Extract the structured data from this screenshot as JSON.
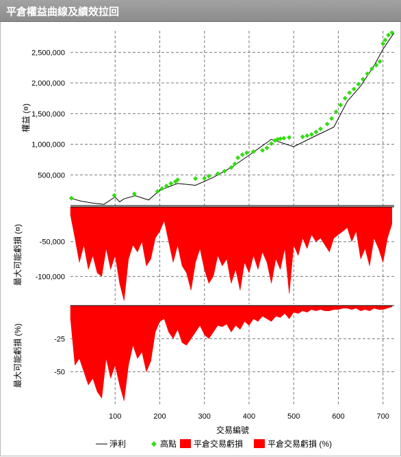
{
  "window": {
    "title": "平倉權益曲線及績效拉回"
  },
  "colors": {
    "equity": "#000000",
    "high": "#33dd11",
    "drawdown": "#ff0000",
    "grid": "#777777"
  },
  "chart_data": [
    {
      "type": "line",
      "ylabel": "權益 (¤)",
      "xlim": [
        0,
        725
      ],
      "ylim": [
        0,
        2850000
      ],
      "yticks": [
        500000,
        1000000,
        1500000,
        2000000,
        2500000
      ],
      "ytick_labels": [
        "500,000",
        "1,000,000",
        "1,500,000",
        "2,000,000",
        "2,500,000"
      ],
      "series": [
        {
          "name": "淨利",
          "x": [
            0,
            25,
            50,
            75,
            100,
            110,
            120,
            145,
            175,
            200,
            240,
            280,
            320,
            360,
            400,
            450,
            500,
            550,
            590,
            620,
            650,
            680,
            700,
            725
          ],
          "y": [
            120000,
            70000,
            40000,
            20000,
            140000,
            60000,
            110000,
            160000,
            90000,
            250000,
            360000,
            330000,
            460000,
            620000,
            820000,
            1080000,
            960000,
            1140000,
            1280000,
            1700000,
            1950000,
            2280000,
            2550000,
            2820000
          ]
        },
        {
          "name": "高點",
          "x": [
            2,
            98,
            143,
            195,
            205,
            215,
            225,
            235,
            240,
            280,
            300,
            310,
            330,
            345,
            360,
            368,
            375,
            385,
            395,
            410,
            430,
            440,
            450,
            458,
            464,
            470,
            478,
            490,
            520,
            530,
            540,
            550,
            560,
            575,
            585,
            595,
            605,
            615,
            625,
            635,
            645,
            655,
            665,
            675,
            685,
            693,
            700,
            705,
            712,
            720
          ],
          "y": [
            120000,
            165000,
            190000,
            230000,
            275000,
            320000,
            360000,
            390000,
            420000,
            440000,
            445000,
            480000,
            520000,
            560000,
            620000,
            680000,
            780000,
            830000,
            860000,
            880000,
            900000,
            940000,
            1010000,
            1060000,
            1080000,
            1090000,
            1100000,
            1110000,
            1120000,
            1140000,
            1160000,
            1200000,
            1250000,
            1330000,
            1420000,
            1530000,
            1640000,
            1750000,
            1840000,
            1900000,
            1980000,
            2060000,
            2150000,
            2230000,
            2290000,
            2350000,
            2640000,
            2700000,
            2780000,
            2820000
          ]
        }
      ]
    },
    {
      "type": "area",
      "ylabel": "最大可能虧損 (¤)",
      "xlim": [
        0,
        725
      ],
      "ylim": [
        -140000,
        0
      ],
      "yticks": [
        -50000,
        -100000
      ],
      "ytick_labels": [
        "-50,000",
        "-100,000"
      ],
      "series": [
        {
          "name": "平倉交易虧損",
          "x": [
            0,
            10,
            20,
            30,
            40,
            50,
            60,
            70,
            80,
            90,
            100,
            110,
            120,
            130,
            140,
            150,
            160,
            170,
            180,
            190,
            200,
            210,
            220,
            230,
            240,
            250,
            260,
            270,
            280,
            290,
            300,
            310,
            320,
            330,
            340,
            350,
            360,
            370,
            380,
            390,
            400,
            410,
            420,
            430,
            440,
            450,
            460,
            470,
            480,
            490,
            500,
            510,
            520,
            530,
            540,
            550,
            560,
            570,
            580,
            590,
            600,
            610,
            620,
            630,
            640,
            650,
            660,
            670,
            680,
            690,
            700,
            710,
            720
          ],
          "y": [
            -12000,
            -45000,
            -80000,
            -55000,
            -90000,
            -70000,
            -95000,
            -100000,
            -60000,
            -90000,
            -70000,
            -110000,
            -135000,
            -75000,
            -55000,
            -65000,
            -50000,
            -85000,
            -75000,
            -45000,
            -35000,
            -20000,
            -50000,
            -80000,
            -55000,
            -85000,
            -95000,
            -120000,
            -80000,
            -60000,
            -90000,
            -110000,
            -100000,
            -70000,
            -85000,
            -75000,
            -110000,
            -90000,
            -120000,
            -80000,
            -95000,
            -70000,
            -90000,
            -65000,
            -80000,
            -110000,
            -75000,
            -90000,
            -60000,
            -125000,
            -55000,
            -70000,
            -45000,
            -60000,
            -40000,
            -50000,
            -45000,
            -55000,
            -65000,
            -45000,
            -40000,
            -35000,
            -30000,
            -50000,
            -35000,
            -75000,
            -60000,
            -85000,
            -45000,
            -60000,
            -80000,
            -45000,
            -25000
          ]
        }
      ]
    },
    {
      "type": "area",
      "xlabel": "交易編號",
      "ylabel": "最大可能虧損 (%)",
      "xlim": [
        0,
        725
      ],
      "ylim": [
        -75,
        0
      ],
      "yticks": [
        -25,
        -50
      ],
      "ytick_labels": [
        "-25",
        "-50"
      ],
      "xticks": [
        100,
        200,
        300,
        400,
        500,
        600,
        700
      ],
      "xtick_labels": [
        "100",
        "200",
        "300",
        "400",
        "500",
        "600",
        "700"
      ],
      "series": [
        {
          "name": "平倉交易虧損 (%)",
          "x": [
            0,
            10,
            20,
            30,
            40,
            50,
            60,
            70,
            80,
            90,
            100,
            110,
            120,
            130,
            140,
            150,
            160,
            170,
            180,
            190,
            200,
            210,
            220,
            230,
            240,
            250,
            260,
            270,
            280,
            290,
            300,
            310,
            320,
            330,
            340,
            350,
            360,
            370,
            380,
            390,
            400,
            410,
            420,
            430,
            440,
            450,
            460,
            470,
            480,
            490,
            500,
            510,
            520,
            530,
            540,
            550,
            560,
            570,
            580,
            590,
            600,
            610,
            620,
            630,
            640,
            650,
            660,
            670,
            680,
            690,
            700,
            710,
            720
          ],
          "y": [
            -10,
            -45,
            -40,
            -50,
            -60,
            -55,
            -65,
            -70,
            -40,
            -55,
            -45,
            -60,
            -72,
            -45,
            -30,
            -40,
            -35,
            -50,
            -42,
            -20,
            -12,
            -10,
            -20,
            -25,
            -18,
            -28,
            -30,
            -25,
            -20,
            -15,
            -22,
            -25,
            -20,
            -15,
            -16,
            -14,
            -20,
            -15,
            -18,
            -12,
            -15,
            -10,
            -12,
            -8,
            -10,
            -12,
            -8,
            -9,
            -6,
            -10,
            -5,
            -6,
            -4,
            -5,
            -3,
            -4,
            -3,
            -4,
            -4,
            -3,
            -3,
            -2,
            -2,
            -3,
            -2,
            -4,
            -3,
            -4,
            -2,
            -3,
            -3,
            -2,
            -1
          ]
        }
      ]
    }
  ],
  "legend": {
    "items": [
      "淨利",
      "高點",
      "平倉交易虧損",
      "平倉交易虧損 (%)"
    ]
  }
}
